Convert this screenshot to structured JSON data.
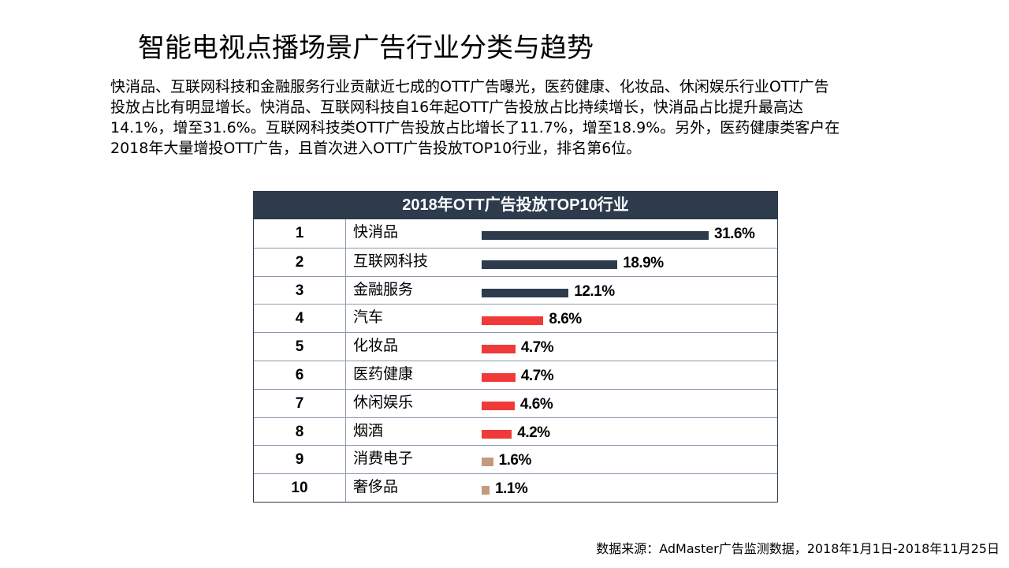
{
  "slide": {
    "title": "智能电视点播场景广告行业分类与趋势",
    "description_lines": [
      "快消品、互联网科技和金融服务行业贡献近七成的OTT广告曝光，医药健康、化妆品、休闲娱乐行业OTT广告",
      "投放占比有明显增长。快消品、互联网科技自16年起OTT广告投放占比持续增长，快消品占比提升最高达",
      "14.1%，增至31.6%。互联网科技类OTT广告投放占比增长了11.7%，增至18.9%。另外，医药健康类客户在",
      "2018年大量增投OTT广告，且首次进入OTT广告投放TOP10行业，排名第6位。"
    ],
    "source": "数据来源：AdMaster广告监测数据，2018年1月1日-2018年11月25日"
  },
  "colors": {
    "header_bg": "#2d3b4d",
    "bar_dark": "#2d3b4d",
    "bar_red": "#f03a3a",
    "bar_tan": "#c49a7c"
  },
  "chart_data": {
    "type": "bar",
    "orientation": "horizontal",
    "title": "2018年OTT广告投放TOP10行业",
    "ranks": [
      "1",
      "2",
      "3",
      "4",
      "5",
      "6",
      "7",
      "8",
      "9",
      "10"
    ],
    "categories": [
      "快消品",
      "互联网科技",
      "金融服务",
      "汽车",
      "化妆品",
      "医药健康",
      "休闲娱乐",
      "烟酒",
      "消费电子",
      "奢侈品"
    ],
    "values": [
      31.6,
      18.9,
      12.1,
      8.6,
      4.7,
      4.7,
      4.6,
      4.2,
      1.6,
      1.1
    ],
    "labels": [
      "31.6%",
      "18.9%",
      "12.1%",
      "8.6%",
      "4.7%",
      "4.7%",
      "4.6%",
      "4.2%",
      "1.6%",
      "1.1%"
    ],
    "bar_colors": [
      "#2d3b4d",
      "#2d3b4d",
      "#2d3b4d",
      "#f03a3a",
      "#f03a3a",
      "#f03a3a",
      "#f03a3a",
      "#f03a3a",
      "#c49a7c",
      "#c49a7c"
    ],
    "unit": "%",
    "xlim": [
      0,
      31.6
    ]
  }
}
